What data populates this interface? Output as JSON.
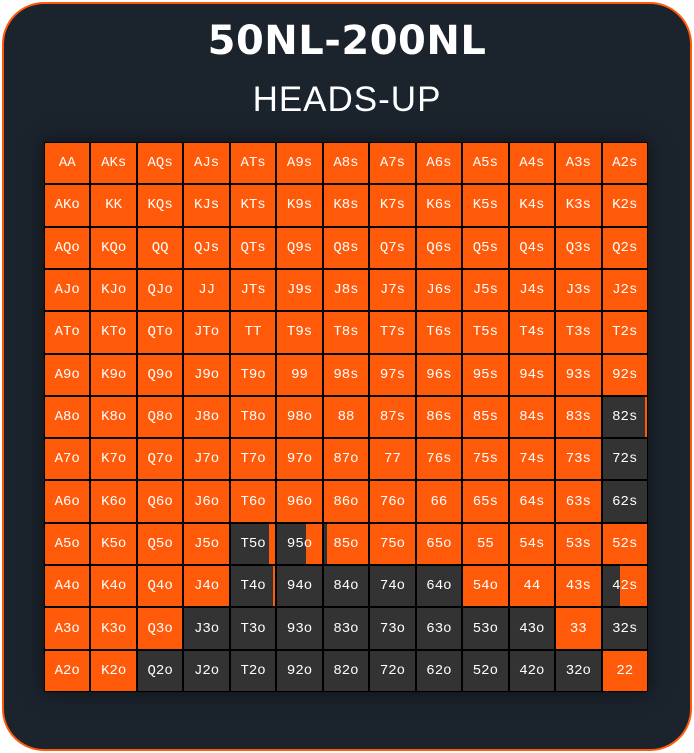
{
  "header": {
    "title": "50NL-200NL",
    "subtitle": "HEADS-UP"
  },
  "colors": {
    "raise": "#ff5a0a",
    "fold": "#333333",
    "background": "#1b232d"
  },
  "ranks": [
    "A",
    "K",
    "Q",
    "J",
    "T",
    "9",
    "8",
    "7",
    "6",
    "5",
    "4",
    "3",
    "2"
  ],
  "range": {
    "labels": [
      [
        "AA",
        "AKs",
        "AQs",
        "AJs",
        "ATs",
        "A9s",
        "A8s",
        "A7s",
        "A6s",
        "A5s",
        "A4s",
        "A3s",
        "A2s"
      ],
      [
        "AKo",
        "KK",
        "KQs",
        "KJs",
        "KTs",
        "K9s",
        "K8s",
        "K7s",
        "K6s",
        "K5s",
        "K4s",
        "K3s",
        "K2s"
      ],
      [
        "AQo",
        "KQo",
        "QQ",
        "QJs",
        "QTs",
        "Q9s",
        "Q8s",
        "Q7s",
        "Q6s",
        "Q5s",
        "Q4s",
        "Q3s",
        "Q2s"
      ],
      [
        "AJo",
        "KJo",
        "QJo",
        "JJ",
        "JTs",
        "J9s",
        "J8s",
        "J7s",
        "J6s",
        "J5s",
        "J4s",
        "J3s",
        "J2s"
      ],
      [
        "ATo",
        "KTo",
        "QTo",
        "JTo",
        "TT",
        "T9s",
        "T8s",
        "T7s",
        "T6s",
        "T5s",
        "T4s",
        "T3s",
        "T2s"
      ],
      [
        "A9o",
        "K9o",
        "Q9o",
        "J9o",
        "T9o",
        "99",
        "98s",
        "97s",
        "96s",
        "95s",
        "94s",
        "93s",
        "92s"
      ],
      [
        "A8o",
        "K8o",
        "Q8o",
        "J8o",
        "T8o",
        "98o",
        "88",
        "87s",
        "86s",
        "85s",
        "84s",
        "83s",
        "82s"
      ],
      [
        "A7o",
        "K7o",
        "Q7o",
        "J7o",
        "T7o",
        "97o",
        "87o",
        "77",
        "76s",
        "75s",
        "74s",
        "73s",
        "72s"
      ],
      [
        "A6o",
        "K6o",
        "Q6o",
        "J6o",
        "T6o",
        "96o",
        "86o",
        "76o",
        "66",
        "65s",
        "64s",
        "63s",
        "62s"
      ],
      [
        "A5o",
        "K5o",
        "Q5o",
        "J5o",
        "T5o",
        "95o",
        "85o",
        "75o",
        "65o",
        "55",
        "54s",
        "53s",
        "52s"
      ],
      [
        "A4o",
        "K4o",
        "Q4o",
        "J4o",
        "T4o",
        "94o",
        "84o",
        "74o",
        "64o",
        "54o",
        "44",
        "43s",
        "42s"
      ],
      [
        "A3o",
        "K3o",
        "Q3o",
        "J3o",
        "T3o",
        "93o",
        "83o",
        "73o",
        "63o",
        "53o",
        "43o",
        "33",
        "32s"
      ],
      [
        "A2o",
        "K2o",
        "Q2o",
        "J2o",
        "T2o",
        "92o",
        "82o",
        "72o",
        "62o",
        "52o",
        "42o",
        "32o",
        "22"
      ]
    ],
    "raise_frequency": [
      [
        1,
        1,
        1,
        1,
        1,
        1,
        1,
        1,
        1,
        1,
        1,
        1,
        1
      ],
      [
        1,
        1,
        1,
        1,
        1,
        1,
        1,
        1,
        1,
        1,
        1,
        1,
        1
      ],
      [
        1,
        1,
        1,
        1,
        1,
        1,
        1,
        1,
        1,
        1,
        1,
        1,
        1
      ],
      [
        1,
        1,
        1,
        1,
        1,
        1,
        1,
        1,
        1,
        1,
        1,
        1,
        1
      ],
      [
        1,
        1,
        1,
        1,
        1,
        1,
        1,
        1,
        1,
        1,
        1,
        1,
        1
      ],
      [
        1,
        1,
        1,
        1,
        1,
        1,
        1,
        1,
        1,
        1,
        1,
        1,
        1
      ],
      [
        1,
        1,
        1,
        1,
        1,
        1,
        1,
        1,
        1,
        1,
        1,
        1,
        0.05
      ],
      [
        1,
        1,
        1,
        1,
        1,
        1,
        1,
        1,
        1,
        1,
        1,
        1,
        0
      ],
      [
        1,
        1,
        1,
        1,
        1,
        1,
        1,
        1,
        1,
        1,
        1,
        1,
        0
      ],
      [
        1,
        1,
        1,
        1,
        0.15,
        0.35,
        0.92,
        1,
        1,
        1,
        1,
        1,
        1
      ],
      [
        1,
        1,
        1,
        1,
        0.05,
        0,
        0,
        0,
        0,
        1,
        1,
        1,
        0.6
      ],
      [
        1,
        1,
        1,
        0,
        0,
        0,
        0,
        0,
        0,
        0,
        0,
        1,
        0
      ],
      [
        1,
        1,
        0,
        0,
        0,
        0,
        0,
        0,
        0,
        0,
        0,
        0,
        1
      ]
    ]
  }
}
